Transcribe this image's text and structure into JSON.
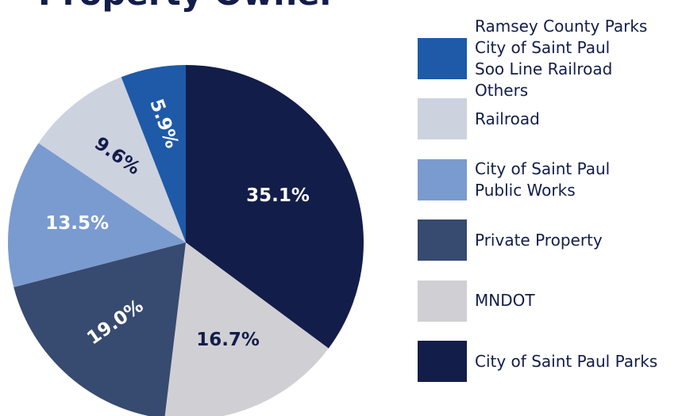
{
  "chart_data": {
    "type": "pie",
    "title": "Property Owner",
    "categories": [
      "City of Saint Paul Parks",
      "MNDOT",
      "Private Property",
      "City of Saint Paul\nPublic Works",
      "Railroad",
      "Ramsey County Parks\nCity of Saint Paul\nSoo Line Railroad\nOthers"
    ],
    "values": [
      35.1,
      16.7,
      19.0,
      13.5,
      9.6,
      5.9
    ],
    "value_labels": [
      "35.1%",
      "16.7%",
      "19.0%",
      "13.5%",
      "9.6%",
      "5.9%"
    ],
    "colors": [
      "#131d4a",
      "#d0d0d4",
      "#374a70",
      "#7a9bd0",
      "#cdd2df",
      "#1e5aa8"
    ]
  }
}
